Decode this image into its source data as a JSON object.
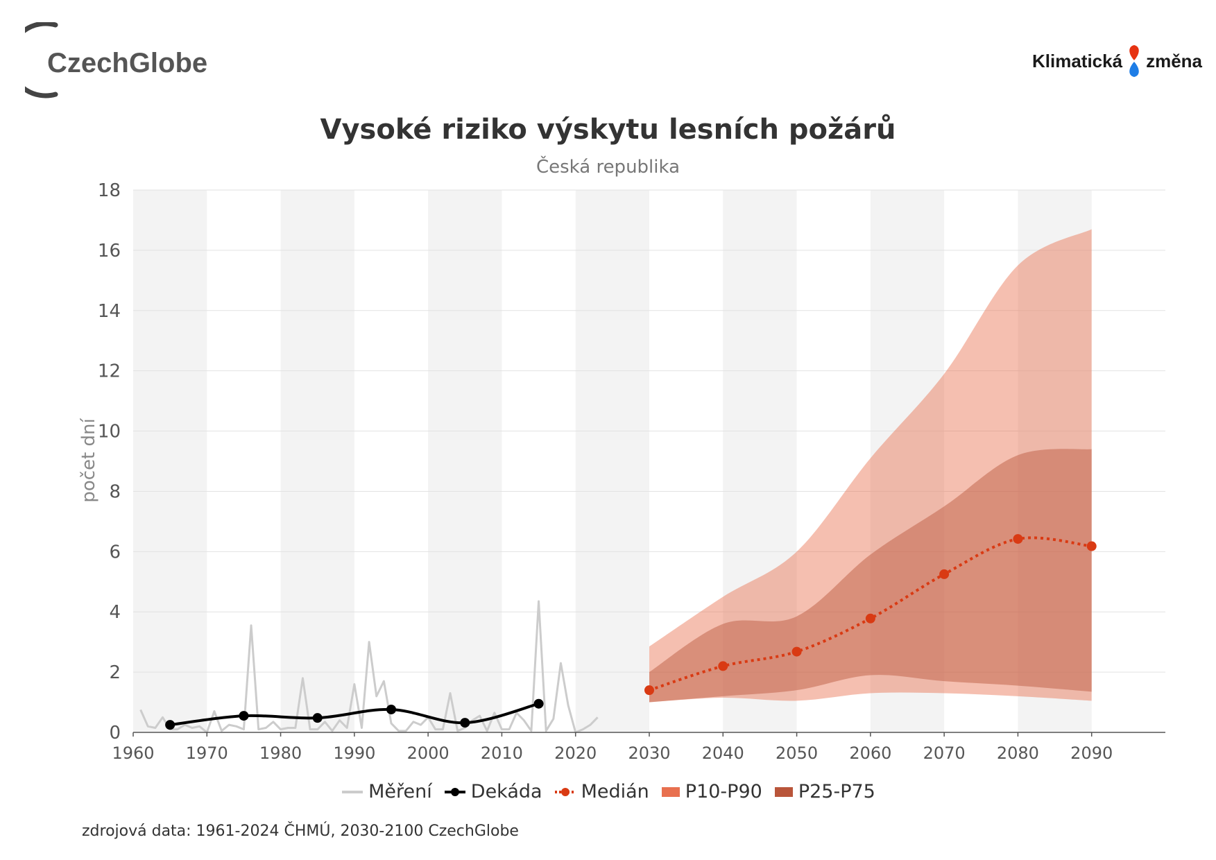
{
  "header": {
    "logo_left_text": "CzechGlobe",
    "logo_right_word1": "Klimatická",
    "logo_right_word2": "změna"
  },
  "colors": {
    "measurement": "#cccccc",
    "decade": "#000000",
    "median": "#d93a13",
    "p10_p90": "#e8704f",
    "p25_p75": "#b9553a",
    "band_light": "#ebebeb"
  },
  "chart_data": {
    "type": "line",
    "title": "Vysoké riziko výskytu lesních požárů",
    "subtitle": "Česká republika",
    "xlabel": "",
    "ylabel": "počet dní",
    "xlim": [
      1960,
      2100
    ],
    "ylim": [
      0,
      18
    ],
    "x_ticks": [
      "1960",
      "1970",
      "1980",
      "1990",
      "2000",
      "2010",
      "2020",
      "2030",
      "2040",
      "2050",
      "2060",
      "2070",
      "2080",
      "2090"
    ],
    "y_ticks": [
      "0",
      "2",
      "4",
      "6",
      "8",
      "10",
      "12",
      "14",
      "16",
      "18"
    ],
    "series": [
      {
        "name": "Měření",
        "x": [
          1961,
          1962,
          1963,
          1964,
          1965,
          1966,
          1967,
          1968,
          1969,
          1970,
          1971,
          1972,
          1973,
          1974,
          1975,
          1976,
          1977,
          1978,
          1979,
          1980,
          1981,
          1982,
          1983,
          1984,
          1985,
          1986,
          1987,
          1988,
          1989,
          1990,
          1991,
          1992,
          1993,
          1994,
          1995,
          1996,
          1997,
          1998,
          1999,
          2000,
          2001,
          2002,
          2003,
          2004,
          2005,
          2006,
          2007,
          2008,
          2009,
          2010,
          2011,
          2012,
          2013,
          2014,
          2015,
          2016,
          2017,
          2018,
          2019,
          2020,
          2021,
          2022,
          2023
        ],
        "values": [
          0.75,
          0.2,
          0.15,
          0.5,
          0.1,
          0.1,
          0.25,
          0.15,
          0.2,
          0.0,
          0.7,
          0.05,
          0.25,
          0.2,
          0.1,
          3.55,
          0.1,
          0.15,
          0.35,
          0.1,
          0.15,
          0.15,
          1.8,
          0.1,
          0.1,
          0.35,
          0.05,
          0.4,
          0.15,
          1.6,
          0.15,
          3.0,
          1.2,
          1.7,
          0.3,
          0.05,
          0.05,
          0.35,
          0.25,
          0.5,
          0.1,
          0.1,
          1.3,
          0.05,
          0.15,
          0.4,
          0.55,
          0.05,
          0.65,
          0.1,
          0.1,
          0.65,
          0.4,
          0.05,
          4.35,
          0.05,
          0.45,
          2.3,
          0.9,
          0.0,
          0.1,
          0.25,
          0.5
        ]
      },
      {
        "name": "Dekáda",
        "x": [
          1965,
          1975,
          1985,
          1995,
          2005,
          2015
        ],
        "values": [
          0.25,
          0.55,
          0.48,
          0.76,
          0.32,
          0.95
        ]
      },
      {
        "name": "Medián",
        "x": [
          2030,
          2040,
          2050,
          2060,
          2070,
          2080,
          2090
        ],
        "values": [
          1.4,
          2.2,
          2.68,
          3.78,
          5.25,
          6.42,
          6.18
        ]
      },
      {
        "name": "P10-P90",
        "x": [
          2030,
          2040,
          2050,
          2060,
          2070,
          2080,
          2090
        ],
        "lower": [
          1.0,
          1.15,
          1.05,
          1.3,
          1.3,
          1.2,
          1.05
        ],
        "upper": [
          2.85,
          4.5,
          6.0,
          9.1,
          11.9,
          15.5,
          16.7
        ]
      },
      {
        "name": "P25-P75",
        "x": [
          2030,
          2040,
          2050,
          2060,
          2070,
          2080,
          2090
        ],
        "lower": [
          1.0,
          1.2,
          1.4,
          1.9,
          1.7,
          1.55,
          1.35
        ],
        "upper": [
          2.0,
          3.6,
          3.85,
          5.9,
          7.5,
          9.2,
          9.4
        ]
      }
    ],
    "legend": [
      "Měření",
      "Dekáda",
      "Medián",
      "P10-P90",
      "P25-P75"
    ],
    "legend_position": "bottom"
  },
  "footer": {
    "source": "zdrojová data: 1961-2024 ČHMÚ, 2030-2100 CzechGlobe"
  }
}
